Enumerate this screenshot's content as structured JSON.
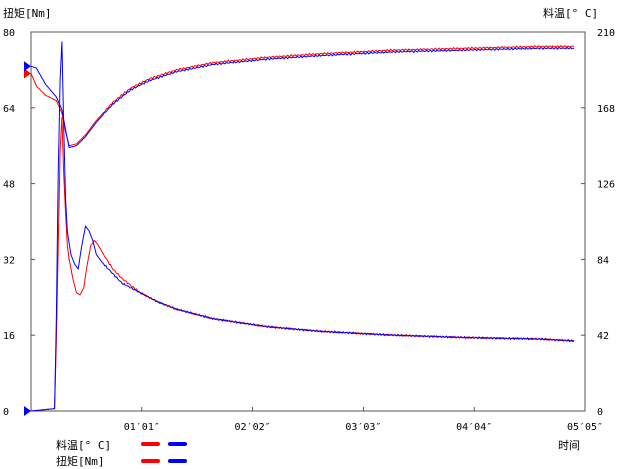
{
  "chart_data": {
    "type": "line",
    "left_axis_title": "扭矩[Nm]",
    "right_axis_title": "料温[° C]",
    "xlabel": "时间",
    "x_unit": "seconds",
    "x_range": [
      0,
      305
    ],
    "x_ticks": [
      {
        "value": 61,
        "label": "01′01″"
      },
      {
        "value": 122,
        "label": "02′02″"
      },
      {
        "value": 183,
        "label": "03′03″"
      },
      {
        "value": 244,
        "label": "04′04″"
      },
      {
        "value": 305,
        "label": "05′05″"
      }
    ],
    "left_ylim": [
      0,
      80
    ],
    "left_ticks": [
      0,
      16,
      32,
      48,
      64,
      80
    ],
    "right_ylim": [
      0,
      210
    ],
    "right_ticks": [
      0,
      42,
      84,
      126,
      168,
      210
    ],
    "grid": false,
    "series": [
      {
        "name": "料温[° C]",
        "axis": "right",
        "run": 1,
        "color": "#ff0000",
        "x": [
          0,
          3,
          8,
          14,
          17,
          19,
          21,
          25,
          30,
          36,
          45,
          55,
          65,
          80,
          100,
          130,
          160,
          200,
          240,
          280,
          299
        ],
        "y": [
          187,
          180,
          175,
          172,
          165,
          155,
          147,
          148,
          153,
          161,
          171,
          179,
          184,
          189,
          193,
          196,
          198,
          200,
          201,
          202,
          202
        ]
      },
      {
        "name": "料温[° C]",
        "axis": "right",
        "run": 2,
        "color": "#0000ff",
        "x": [
          0,
          3,
          8,
          14,
          17,
          19,
          21,
          25,
          30,
          36,
          45,
          55,
          65,
          80,
          100,
          130,
          160,
          200,
          240,
          280,
          299
        ],
        "y": [
          191,
          190,
          181,
          174,
          167,
          156,
          146,
          147,
          152,
          160,
          170,
          178,
          183,
          188,
          192,
          195,
          197,
          199,
          200,
          201,
          201
        ]
      },
      {
        "name": "扭矩[Nm]",
        "axis": "left",
        "run": 1,
        "color": "#ff0000",
        "x": [
          0,
          13,
          14,
          16,
          17,
          18,
          19,
          20,
          21,
          23,
          25,
          27,
          29,
          31,
          33,
          35,
          37,
          40,
          45,
          50,
          55,
          60,
          70,
          80,
          100,
          130,
          160,
          200,
          240,
          280,
          299
        ],
        "y": [
          0,
          0.5,
          15,
          55,
          62,
          50,
          42,
          35,
          32,
          28,
          25,
          24.5,
          26,
          31,
          35,
          36,
          35,
          33,
          30,
          28,
          26.5,
          25,
          23,
          21.5,
          19.5,
          17.8,
          16.8,
          16,
          15.5,
          15.2,
          14.8
        ]
      },
      {
        "name": "扭矩[Nm]",
        "axis": "left",
        "run": 2,
        "color": "#0000ff",
        "x": [
          0,
          13,
          14,
          15,
          16,
          17,
          18,
          19,
          20,
          22,
          24,
          26,
          28,
          30,
          32,
          34,
          36,
          40,
          45,
          50,
          55,
          60,
          70,
          80,
          100,
          130,
          160,
          200,
          240,
          280,
          299
        ],
        "y": [
          0,
          0.5,
          20,
          50,
          70,
          78,
          60,
          45,
          38,
          33,
          31,
          30,
          35,
          39,
          38,
          36,
          33,
          31,
          29,
          27,
          26,
          25,
          23,
          21.5,
          19.5,
          17.8,
          16.8,
          16,
          15.5,
          15.2,
          14.8
        ]
      }
    ],
    "legend": [
      {
        "label": "料温[° C]",
        "colors": [
          "#ff0000",
          "#0000ff"
        ]
      },
      {
        "label": "扭矩[Nm]",
        "colors": [
          "#ff0000",
          "#0000ff"
        ]
      }
    ]
  }
}
